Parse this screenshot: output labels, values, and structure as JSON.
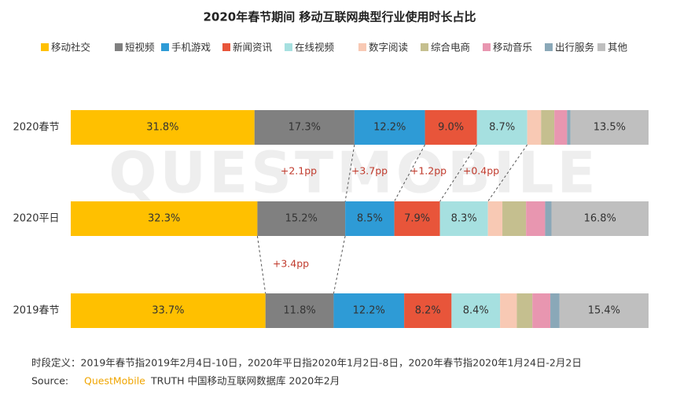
{
  "chart_data": {
    "type": "stacked-bar-h",
    "title": "2020年春节期间 移动互联网典型行业使用时长占比",
    "watermark": "QUESTMOBILE",
    "categories": [
      "2020春节",
      "2020平日",
      "2019春节"
    ],
    "xlim": [
      0,
      100
    ],
    "series": [
      {
        "name": "移动社交",
        "color": "#ffc000",
        "values": [
          31.8,
          32.3,
          33.7
        ],
        "value_labels": [
          "31.8%",
          "32.3%",
          "33.7%"
        ]
      },
      {
        "name": "短视频",
        "color": "#808080",
        "values": [
          17.3,
          15.2,
          11.8
        ],
        "value_labels": [
          "17.3%",
          "15.2%",
          "11.8%"
        ]
      },
      {
        "name": "手机游戏",
        "color": "#2e9bd6",
        "values": [
          12.2,
          8.5,
          12.2
        ],
        "value_labels": [
          "12.2%",
          "8.5%",
          "12.2%"
        ]
      },
      {
        "name": "新闻资讯",
        "color": "#e8553a",
        "values": [
          9.0,
          7.9,
          8.2
        ],
        "value_labels": [
          "9.0%",
          "7.9%",
          "8.2%"
        ]
      },
      {
        "name": "在线视频",
        "color": "#a6e0e0",
        "values": [
          8.7,
          8.3,
          8.4
        ],
        "value_labels": [
          "8.7%",
          "8.3%",
          "8.4%"
        ]
      },
      {
        "name": "数字阅读",
        "color": "#f8c9b4",
        "values": [
          2.4,
          2.5,
          2.9
        ],
        "value_labels": [
          null,
          null,
          null
        ]
      },
      {
        "name": "综合电商",
        "color": "#c5bf8f",
        "values": [
          2.3,
          4.1,
          2.7
        ],
        "value_labels": [
          null,
          null,
          null
        ]
      },
      {
        "name": "移动音乐",
        "color": "#e896b0",
        "values": [
          2.2,
          3.3,
          3.1
        ],
        "value_labels": [
          null,
          null,
          null
        ]
      },
      {
        "name": "出行服务",
        "color": "#8aa8b8",
        "values": [
          0.6,
          1.1,
          1.6
        ],
        "value_labels": [
          null,
          null,
          null
        ]
      },
      {
        "name": "其他",
        "color": "#bfbfbf",
        "values": [
          13.5,
          16.8,
          15.4
        ],
        "value_labels": [
          "13.5%",
          "16.8%",
          "15.4%"
        ]
      }
    ],
    "annotations": [
      "+2.1pp",
      "+3.7pp",
      "+1.2pp",
      "+0.4pp",
      "+3.4pp"
    ],
    "notes": {
      "definition": "时段定义：2019年春节指2019年2月4日-10日，2020年平日指2020年1月2日-8日，2020年春节指2020年1月24日-2月2日",
      "source_label": "Source:",
      "source_brand": "QuestMobile",
      "source_text": "TRUTH 中国移动互联网数据库 2020年2月"
    }
  }
}
